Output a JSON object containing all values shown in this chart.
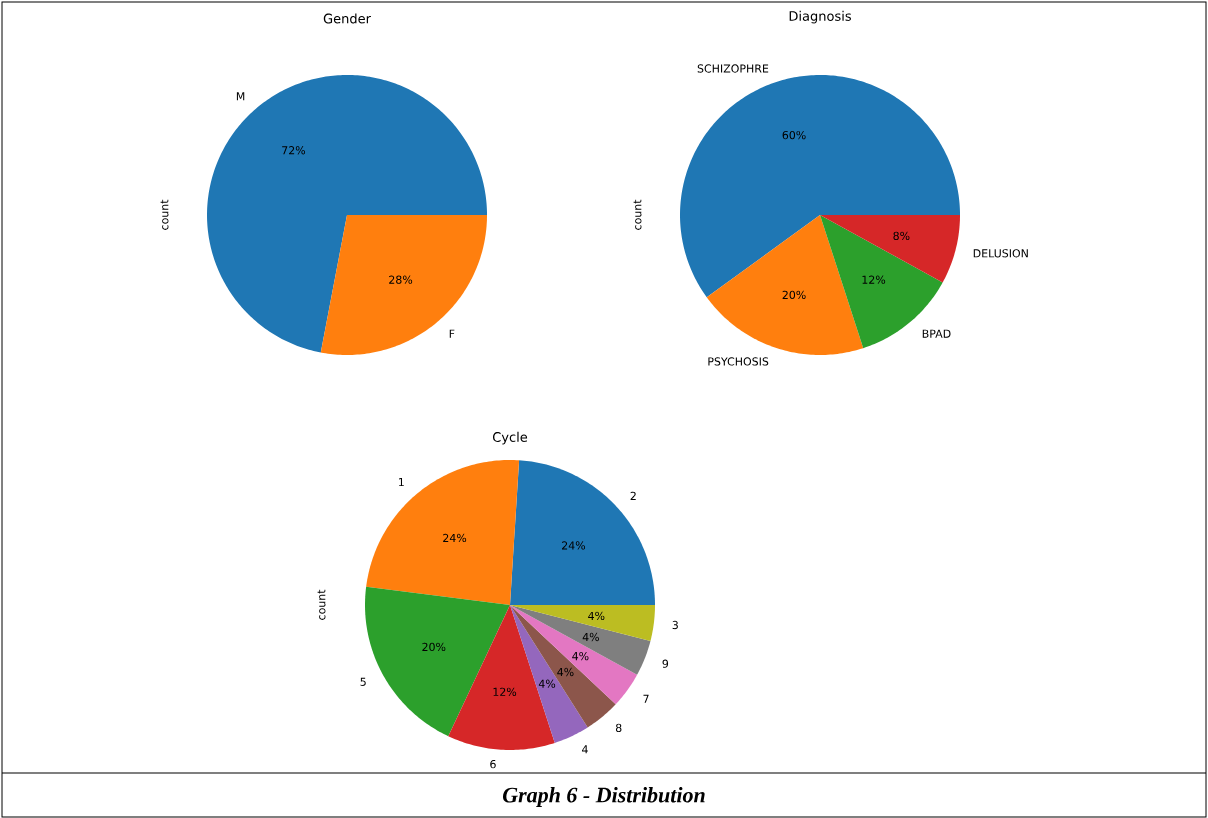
{
  "chart_data": [
    {
      "type": "pie",
      "title": "Gender",
      "ylabel": "count",
      "categories": [
        "M",
        "F"
      ],
      "values": [
        72,
        28
      ],
      "colors": [
        "#1f77b4",
        "#ff7f0e"
      ],
      "value_labels": [
        "72%",
        "28%"
      ]
    },
    {
      "type": "pie",
      "title": "Diagnosis",
      "ylabel": "count",
      "categories": [
        "SCHIZOPHRE",
        "PSYCHOSIS",
        "BPAD",
        "DELUSION"
      ],
      "values": [
        60,
        20,
        12,
        8
      ],
      "colors": [
        "#1f77b4",
        "#ff7f0e",
        "#2ca02c",
        "#d62728"
      ],
      "value_labels": [
        "60%",
        "20%",
        "12%",
        "8%"
      ]
    },
    {
      "type": "pie",
      "title": "Cycle",
      "ylabel": "count",
      "categories": [
        "2",
        "1",
        "5",
        "6",
        "4",
        "8",
        "7",
        "9",
        "3"
      ],
      "values": [
        24,
        24,
        20,
        12,
        4,
        4,
        4,
        4,
        4
      ],
      "colors": [
        "#1f77b4",
        "#ff7f0e",
        "#2ca02c",
        "#d62728",
        "#9467bd",
        "#8c564b",
        "#e377c2",
        "#7f7f7f",
        "#bcbd22"
      ],
      "value_labels": [
        "24%",
        "24%",
        "20%",
        "12%",
        "4%",
        "4%",
        "4%",
        "4%",
        "4%"
      ],
      "annotations": [
        "**Graph 6 - Distribution**"
      ]
    }
  ]
}
